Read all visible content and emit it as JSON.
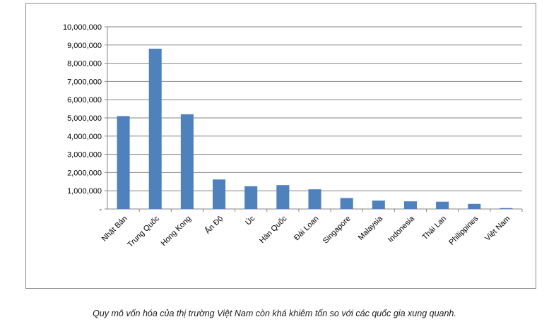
{
  "chart_data": {
    "type": "bar",
    "title": "",
    "xlabel": "",
    "ylabel": "",
    "categories": [
      "Nhật Bản",
      "Trung Quốc",
      "Hong Kong",
      "Ấn Độ",
      "Úc",
      "Hàn Quốc",
      "Đài Loan",
      "Singapore",
      "Malaysia",
      "Indonesia",
      "Thái Lan",
      "Philippines",
      "Việt Nam"
    ],
    "values": [
      5100000,
      8800000,
      5200000,
      1620000,
      1250000,
      1310000,
      1080000,
      600000,
      460000,
      420000,
      400000,
      280000,
      50000
    ],
    "ylim": [
      0,
      10000000
    ],
    "yticks": [
      0,
      1000000,
      2000000,
      3000000,
      4000000,
      5000000,
      6000000,
      7000000,
      8000000,
      9000000,
      10000000
    ],
    "ytick_labels": [
      "-",
      "1,000,000",
      "2,000,000",
      "3,000,000",
      "4,000,000",
      "5,000,000",
      "6,000,000",
      "7,000,000",
      "8,000,000",
      "9,000,000",
      "10,000,000"
    ],
    "grid": true,
    "legend": "none",
    "colors": {
      "bar": "#4f81bd",
      "grid": "#868686",
      "axis": "#868686"
    }
  },
  "caption": "Quy mô vốn hóa của thị trường Việt Nam còn khá khiêm tốn so với các quốc gia xung quanh."
}
